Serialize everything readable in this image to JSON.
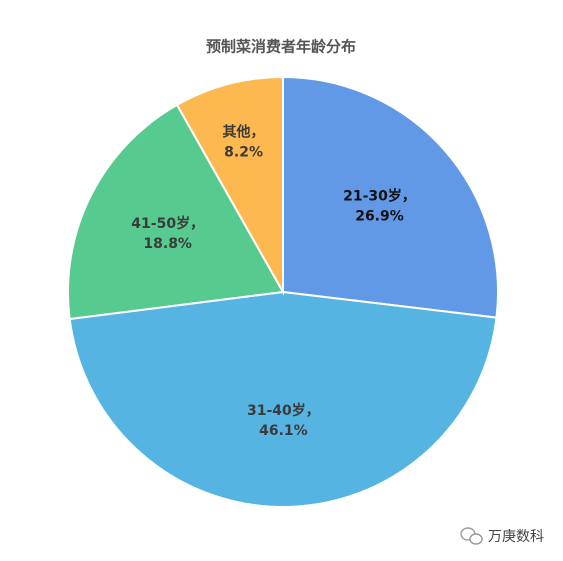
{
  "chart_data": {
    "type": "pie",
    "title": "预制菜消费者年龄分布",
    "categories": [
      "21-30岁",
      "31-40岁",
      "41-50岁",
      "其他"
    ],
    "values": [
      26.9,
      46.1,
      18.8,
      8.2
    ],
    "value_labels": [
      "26.9%",
      "46.1%",
      "18.8%",
      "8.2%"
    ],
    "label_separator": "，",
    "colors": [
      "#6299e6",
      "#56b4e3",
      "#57ca90",
      "#fdb950"
    ],
    "start_angle": 0,
    "direction": "clockwise"
  },
  "watermark": "万庚数科"
}
